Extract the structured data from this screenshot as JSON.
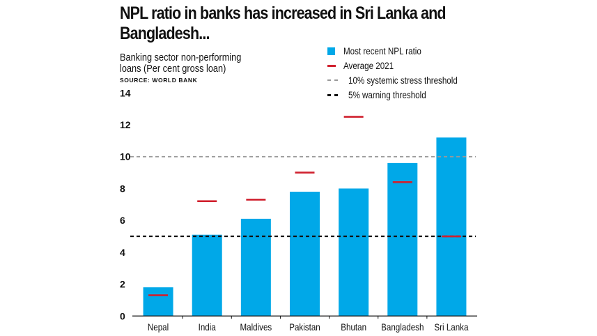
{
  "chart_data": {
    "type": "bar",
    "title": "NPL ratio in banks has increased in Sri Lanka and Bangladesh...",
    "subtitle": "Banking sector non-performing loans (Per cent gross loan)",
    "source": "SOURCE: WORLD BANK",
    "categories": [
      "Nepal",
      "India",
      "Maldives",
      "Pakistan",
      "Bhutan",
      "Bangladesh",
      "Sri Lanka"
    ],
    "series": [
      {
        "name": "Most recent NPL ratio",
        "kind": "bar",
        "color": "#00a8e8",
        "values": [
          1.8,
          5.1,
          6.1,
          7.8,
          8.0,
          9.6,
          11.2
        ]
      },
      {
        "name": "Average 2021",
        "kind": "marker",
        "color": "#d0202e",
        "values": [
          1.3,
          7.2,
          7.3,
          9.0,
          12.5,
          8.4,
          5.0
        ]
      }
    ],
    "reference_lines": [
      {
        "name": "10% systemic stress threshold",
        "value": 10,
        "color": "#999999",
        "style": "dashed"
      },
      {
        "name": "5% warning threshold",
        "value": 5,
        "color": "#111111",
        "style": "dashed"
      }
    ],
    "yticks": [
      0,
      2,
      4,
      6,
      8,
      10,
      12,
      14
    ],
    "ylim": [
      0,
      14
    ],
    "xlabel": "",
    "ylabel": "",
    "grid": false,
    "legend_placement": "top-right"
  }
}
